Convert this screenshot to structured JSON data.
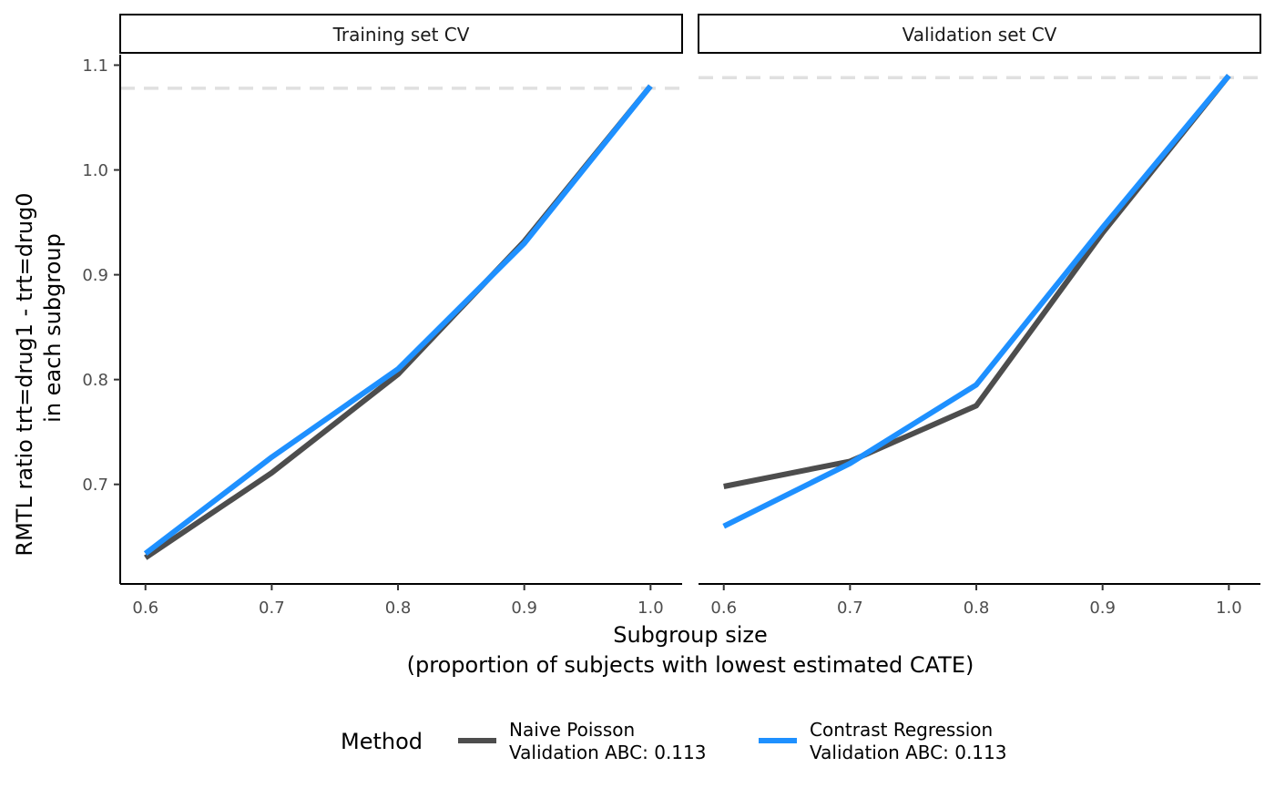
{
  "chart_data": {
    "type": "line",
    "xlabel": [
      "Subgroup size",
      "(proportion of subjects with lowest estimated CATE)"
    ],
    "ylabel": [
      "RMTL ratio trt=drug1 - trt=drug0",
      "in each subgroup"
    ],
    "xlim": [
      0.58,
      1.025
    ],
    "ylim": [
      0.605,
      1.11
    ],
    "xticks": [
      "0.6",
      "0.7",
      "0.8",
      "0.9",
      "1.0"
    ],
    "yticks": [
      "0.7",
      "0.8",
      "0.9",
      "1.0",
      "1.1"
    ],
    "legend": {
      "title": "Method",
      "placement": "bottom",
      "entries": [
        {
          "line1": "Naive Poisson",
          "line2": "Validation ABC: 0.113",
          "color": "#4d4d4d"
        },
        {
          "line1": "Contrast Regression",
          "line2": "Validation ABC: 0.113",
          "color": "#1e90ff"
        }
      ]
    },
    "panels": [
      {
        "title": "Training set CV",
        "reference_line": 1.078,
        "series": [
          {
            "name": "Naive Poisson",
            "x": [
              0.6,
              0.7,
              0.8,
              0.9,
              1.0
            ],
            "y": [
              0.63,
              0.711,
              0.805,
              0.932,
              1.08
            ]
          },
          {
            "name": "Contrast Regression",
            "x": [
              0.6,
              0.7,
              0.8,
              0.9,
              1.0
            ],
            "y": [
              0.634,
              0.726,
              0.81,
              0.93,
              1.08
            ]
          }
        ]
      },
      {
        "title": "Validation set CV",
        "reference_line": 1.088,
        "series": [
          {
            "name": "Naive Poisson",
            "x": [
              0.6,
              0.7,
              0.8,
              0.9,
              1.0
            ],
            "y": [
              0.698,
              0.722,
              0.775,
              0.94,
              1.09
            ]
          },
          {
            "name": "Contrast Regression",
            "x": [
              0.6,
              0.7,
              0.8,
              0.9,
              1.0
            ],
            "y": [
              0.66,
              0.72,
              0.795,
              0.945,
              1.09
            ]
          }
        ]
      }
    ]
  }
}
